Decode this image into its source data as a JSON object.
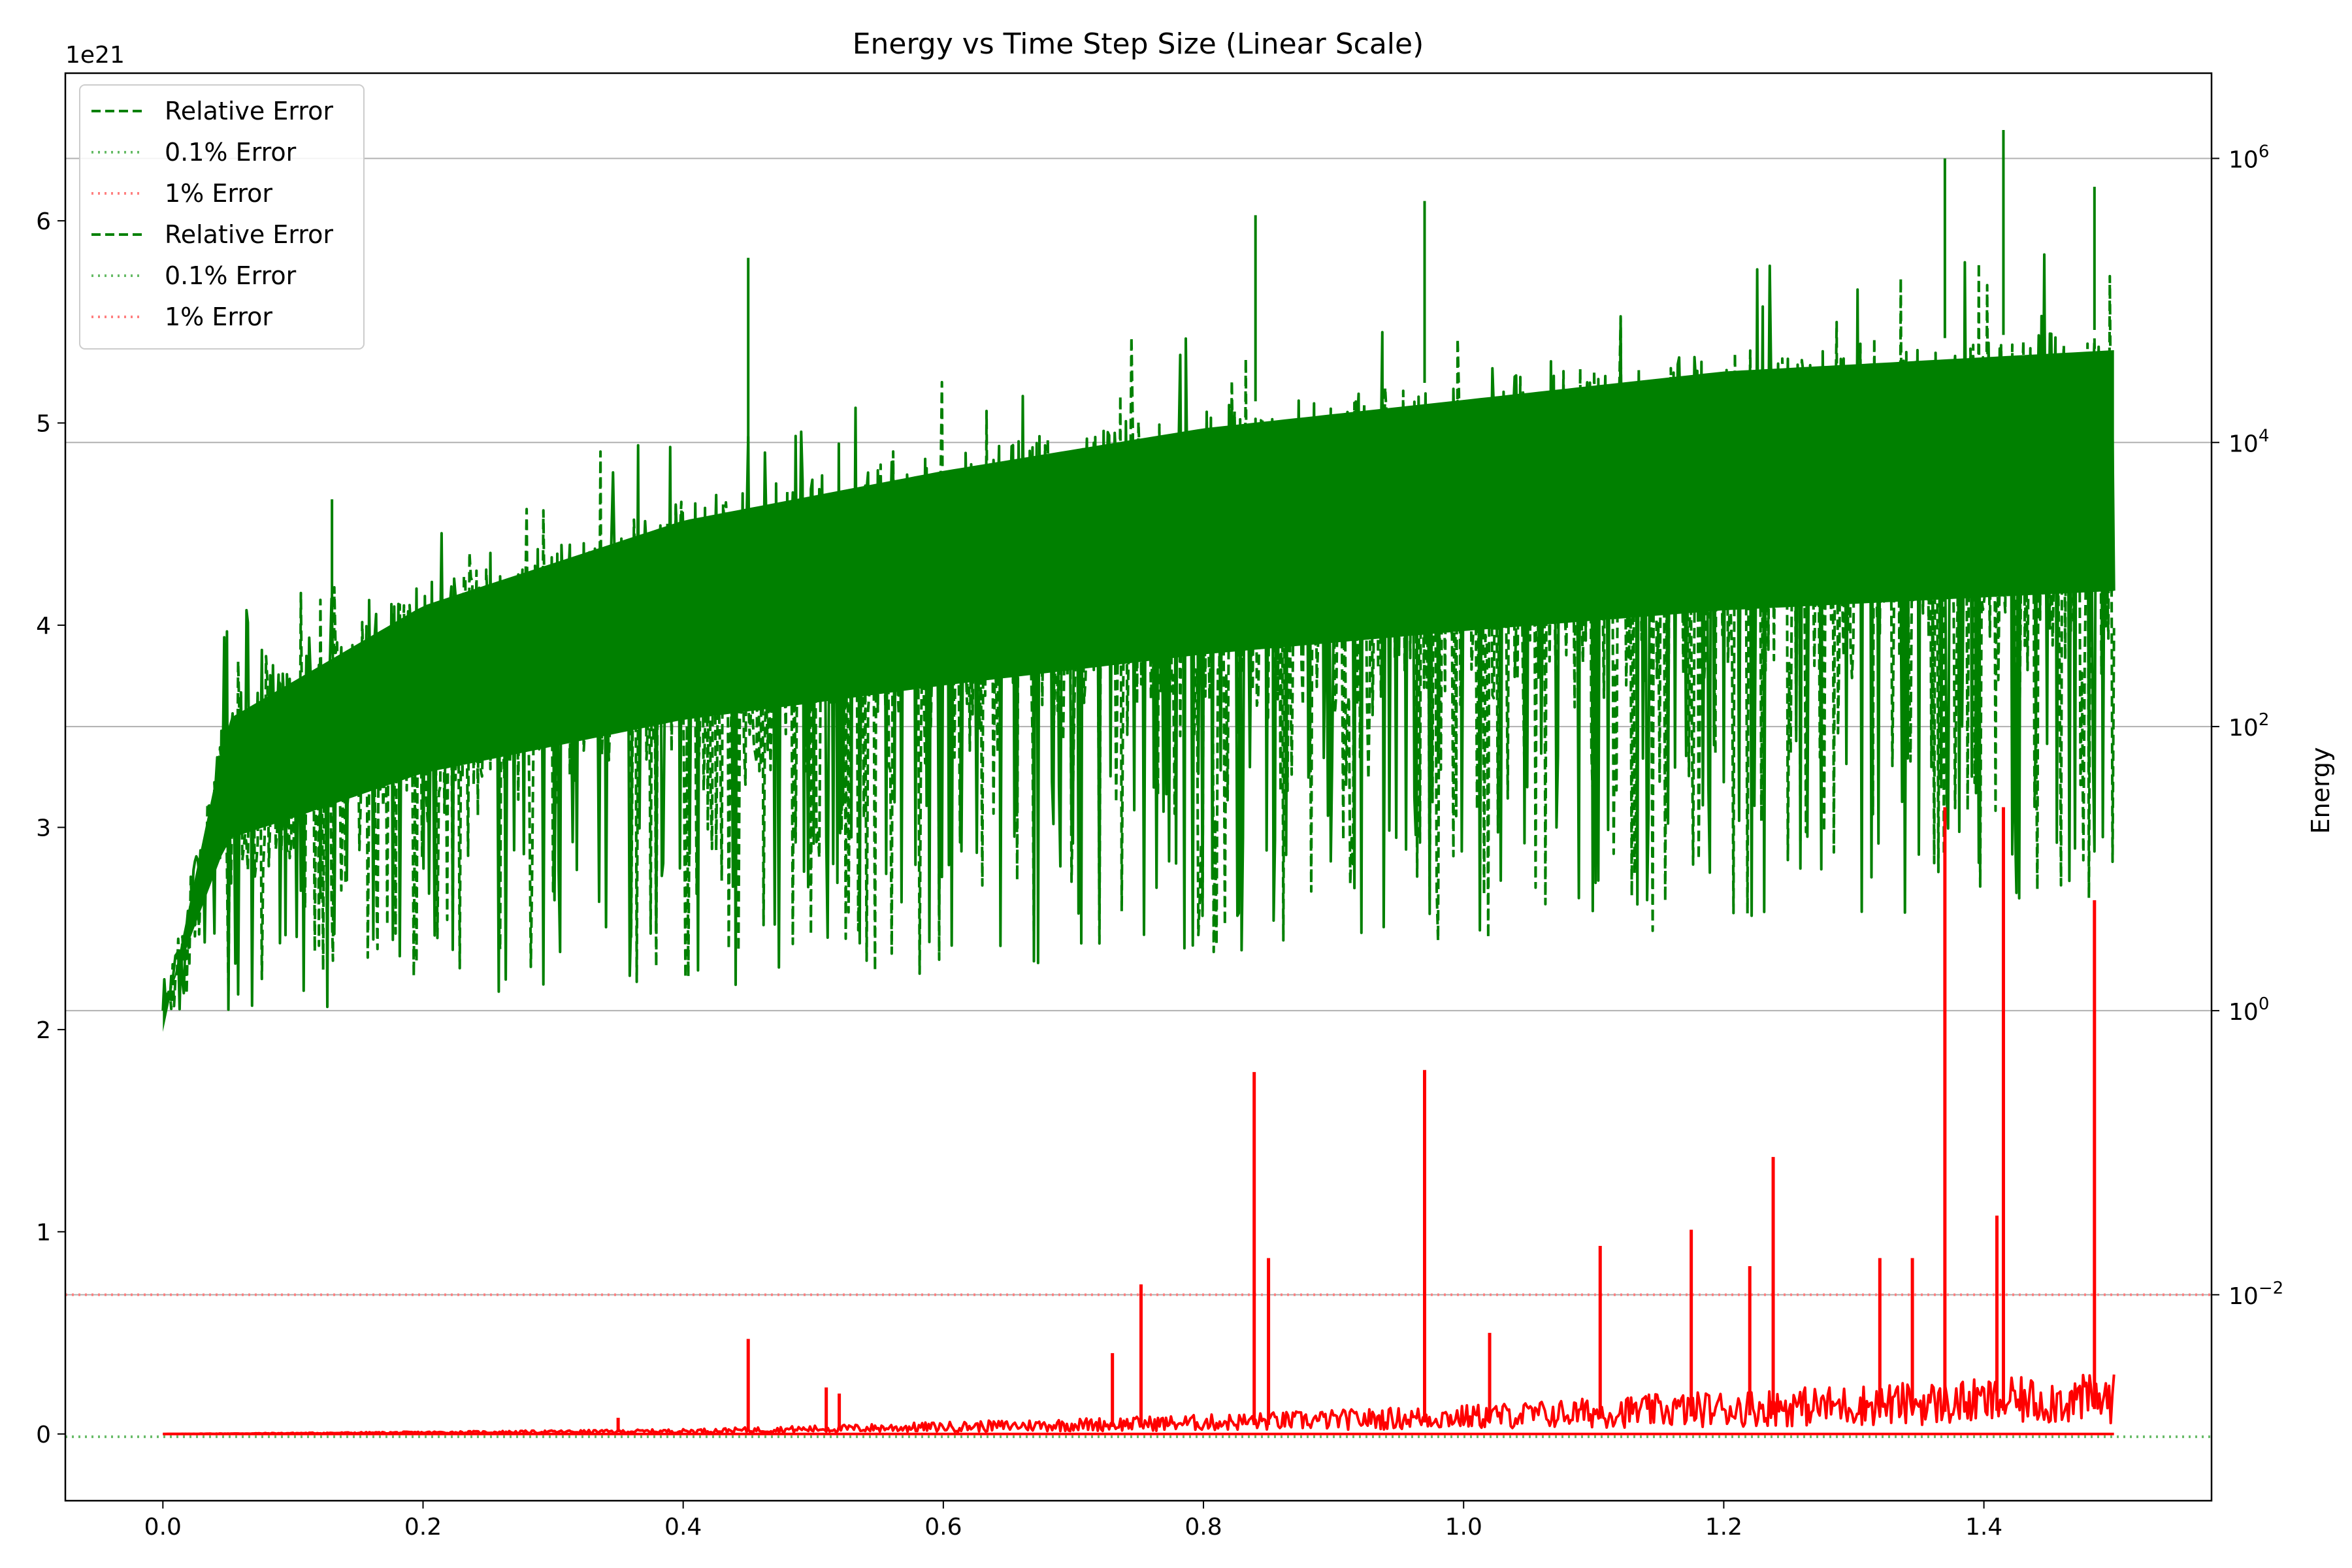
{
  "chart_data": {
    "type": "line",
    "title": "Energy vs Time Step Size (Linear Scale)",
    "xlabel": "",
    "xlim": [
      -0.075,
      1.575
    ],
    "x_ticks": [
      "0.0",
      "0.2",
      "0.4",
      "0.6",
      "0.8",
      "1.0",
      "1.2",
      "1.4"
    ],
    "x_tick_values": [
      0.0,
      0.2,
      0.4,
      0.6,
      0.8,
      1.0,
      1.2,
      1.4
    ],
    "left_axis": {
      "ylabel": "",
      "offset_label": "1e21",
      "ylim": [
        -0.33,
        6.73
      ],
      "ticks": [
        "0",
        "1",
        "2",
        "3",
        "4",
        "5",
        "6"
      ],
      "tick_values": [
        0,
        1,
        2,
        3,
        4,
        5,
        6
      ],
      "scale": "linear"
    },
    "right_axis": {
      "ylabel": "Energy",
      "scale": "log",
      "ylim_exponent": [
        -3.45,
        6.6
      ],
      "ticks": [
        {
          "base": "10",
          "exp": "6",
          "value": 6
        },
        {
          "base": "10",
          "exp": "4",
          "value": 4
        },
        {
          "base": "10",
          "exp": "2",
          "value": 2
        },
        {
          "base": "10",
          "exp": "0",
          "value": 0
        },
        {
          "base": "10",
          "exp": "−2",
          "value": -2
        }
      ],
      "grid": true
    },
    "series": [
      {
        "name": "Relative Error",
        "axis": "right",
        "color": "#008000",
        "style": "solid",
        "description": "dense noisy envelope",
        "x_range": [
          0.0,
          1.5
        ],
        "upper_envelope_log": [
          [
            0.0,
            0.0
          ],
          [
            0.05,
            2.2
          ],
          [
            0.2,
            3.0
          ],
          [
            0.4,
            3.6
          ],
          [
            0.6,
            3.95
          ],
          [
            0.8,
            4.25
          ],
          [
            1.0,
            4.45
          ],
          [
            1.2,
            4.65
          ],
          [
            1.5,
            4.8
          ]
        ],
        "lower_envelope_log": [
          [
            0.0,
            0.0
          ],
          [
            0.1,
            0.0
          ],
          [
            0.5,
            0.2
          ],
          [
            1.0,
            0.5
          ],
          [
            1.5,
            0.7
          ]
        ],
        "spikes_log": [
          [
            0.13,
            3.6
          ],
          [
            0.45,
            5.3
          ],
          [
            0.84,
            5.6
          ],
          [
            0.97,
            5.7
          ],
          [
            1.37,
            6.0
          ],
          [
            1.415,
            6.2
          ],
          [
            1.485,
            5.8
          ]
        ]
      },
      {
        "name": "Relative Error",
        "axis": "right",
        "color": "#008000",
        "style": "dashed",
        "description": "dense noisy envelope",
        "x_range": [
          0.0,
          1.5
        ]
      },
      {
        "name": "",
        "axis": "left",
        "color": "#ff0000",
        "style": "solid",
        "description": "energy in units of 1e21",
        "baseline": [
          [
            0.0,
            0.0
          ],
          [
            0.4,
            0.02
          ],
          [
            0.8,
            0.08
          ],
          [
            1.0,
            0.12
          ],
          [
            1.2,
            0.18
          ],
          [
            1.5,
            0.25
          ]
        ],
        "spikes": [
          [
            0.35,
            0.08
          ],
          [
            0.45,
            0.47
          ],
          [
            0.51,
            0.23
          ],
          [
            0.52,
            0.2
          ],
          [
            0.73,
            0.4
          ],
          [
            0.752,
            0.74
          ],
          [
            0.839,
            1.79
          ],
          [
            0.85,
            0.87
          ],
          [
            0.97,
            1.8
          ],
          [
            1.02,
            0.5
          ],
          [
            1.105,
            0.93
          ],
          [
            1.175,
            1.01
          ],
          [
            1.22,
            0.83
          ],
          [
            1.238,
            1.37
          ],
          [
            1.32,
            0.87
          ],
          [
            1.345,
            0.87
          ],
          [
            1.37,
            3.1
          ],
          [
            1.41,
            1.08
          ],
          [
            1.415,
            3.1
          ],
          [
            1.485,
            2.64
          ]
        ]
      }
    ],
    "reference_lines": [
      {
        "name": "0.1% Error",
        "axis": "right",
        "value_exp": -3,
        "color": "#66bb66",
        "style": "dotted"
      },
      {
        "name": "1% Error",
        "axis": "right",
        "value_exp": -2,
        "color": "#ff7f7f",
        "style": "dotted"
      }
    ],
    "legend": {
      "placement": "top-left",
      "entries": [
        {
          "label": "Relative Error",
          "color": "#008000",
          "style": "dashed"
        },
        {
          "label": "0.1% Error",
          "color": "#66bb66",
          "style": "dotted"
        },
        {
          "label": "1% Error",
          "color": "#ff7f7f",
          "style": "dotted"
        },
        {
          "label": "Relative Error",
          "color": "#008000",
          "style": "dashed"
        },
        {
          "label": "0.1% Error",
          "color": "#66bb66",
          "style": "dotted"
        },
        {
          "label": "1% Error",
          "color": "#ff7f7f",
          "style": "dotted"
        }
      ]
    }
  }
}
